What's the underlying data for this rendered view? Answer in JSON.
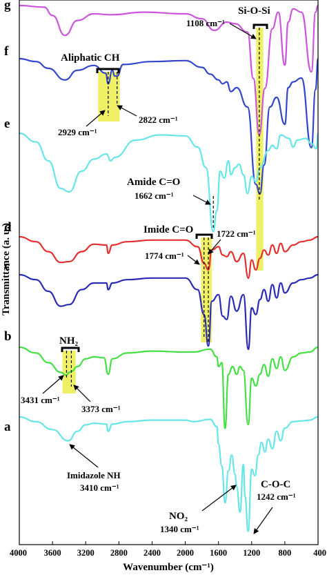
{
  "chart_data": {
    "type": "line",
    "xlabel": "Wavenumber (cm⁻¹)",
    "ylabel": "Transmittance (a. u.)",
    "xlim": [
      4000,
      400
    ],
    "x_reversed": true,
    "x_ticks": [
      4000,
      3600,
      3200,
      2800,
      2400,
      2000,
      1600,
      1200,
      800,
      400
    ],
    "x_tick_labels": [
      "4000",
      "3600",
      "3200",
      "2800",
      "2400",
      "2000",
      "1600",
      "1200",
      "800",
      "400"
    ],
    "grid": false,
    "legend": "none",
    "series": [
      {
        "letter": "g",
        "color": "#cc55dd",
        "points": [
          [
            4000,
            0.0
          ],
          [
            3700,
            0.05
          ],
          [
            3600,
            0.3
          ],
          [
            3450,
            0.9
          ],
          [
            3300,
            0.45
          ],
          [
            3100,
            0.25
          ],
          [
            2900,
            0.28
          ],
          [
            2500,
            0.2
          ],
          [
            2000,
            0.25
          ],
          [
            1800,
            0.4
          ],
          [
            1650,
            0.75
          ],
          [
            1500,
            0.5
          ],
          [
            1400,
            0.55
          ],
          [
            1250,
            0.8
          ],
          [
            1180,
            2.2
          ],
          [
            1108,
            3.9
          ],
          [
            1040,
            2.5
          ],
          [
            950,
            0.7
          ],
          [
            880,
            0.2
          ],
          [
            800,
            1.8
          ],
          [
            760,
            0.5
          ],
          [
            700,
            0.1
          ],
          [
            600,
            0.2
          ],
          [
            480,
            2.0
          ],
          [
            430,
            0.2
          ],
          [
            400,
            0.0
          ]
        ]
      },
      {
        "letter": "f",
        "color": "#3346cc",
        "points": [
          [
            4000,
            0.0
          ],
          [
            3800,
            0.15
          ],
          [
            3650,
            0.5
          ],
          [
            3450,
            1.1
          ],
          [
            3300,
            0.6
          ],
          [
            3100,
            0.35
          ],
          [
            2960,
            0.75
          ],
          [
            2929,
            1.3
          ],
          [
            2880,
            0.6
          ],
          [
            2850,
            0.9
          ],
          [
            2822,
            0.9
          ],
          [
            2750,
            0.3
          ],
          [
            2400,
            0.15
          ],
          [
            2000,
            0.1
          ],
          [
            1800,
            0.45
          ],
          [
            1700,
            0.8
          ],
          [
            1600,
            1.1
          ],
          [
            1550,
            1.3
          ],
          [
            1500,
            1.2
          ],
          [
            1450,
            1.7
          ],
          [
            1380,
            1.5
          ],
          [
            1250,
            2.5
          ],
          [
            1150,
            6.5
          ],
          [
            1100,
            7.0
          ],
          [
            1050,
            5.5
          ],
          [
            980,
            2.5
          ],
          [
            900,
            2.0
          ],
          [
            800,
            3.4
          ],
          [
            760,
            1.5
          ],
          [
            700,
            1.2
          ],
          [
            600,
            1.0
          ],
          [
            480,
            4.6
          ],
          [
            430,
            1.6
          ],
          [
            400,
            0.0
          ]
        ]
      },
      {
        "letter": "e",
        "color": "#66e6e6",
        "points": [
          [
            4000,
            0.0
          ],
          [
            3800,
            0.5
          ],
          [
            3650,
            1.6
          ],
          [
            3500,
            3.2
          ],
          [
            3400,
            3.4
          ],
          [
            3250,
            2.2
          ],
          [
            3100,
            1.5
          ],
          [
            2950,
            1.2
          ],
          [
            2900,
            1.6
          ],
          [
            2850,
            1.4
          ],
          [
            2600,
            0.4
          ],
          [
            2300,
            0.1
          ],
          [
            2000,
            0.15
          ],
          [
            1850,
            0.8
          ],
          [
            1750,
            2.0
          ],
          [
            1662,
            5.7
          ],
          [
            1620,
            4.5
          ],
          [
            1580,
            2.2
          ],
          [
            1530,
            2.6
          ],
          [
            1480,
            1.6
          ],
          [
            1450,
            2.4
          ],
          [
            1400,
            2.0
          ],
          [
            1350,
            1.8
          ],
          [
            1300,
            2.4
          ],
          [
            1250,
            3.5
          ],
          [
            1200,
            2.5
          ],
          [
            1150,
            2.8
          ],
          [
            1100,
            2.0
          ],
          [
            1000,
            1.0
          ],
          [
            950,
            0.7
          ],
          [
            900,
            0.9
          ],
          [
            850,
            0.1
          ],
          [
            750,
            0.3
          ],
          [
            700,
            0.8
          ],
          [
            650,
            0.4
          ],
          [
            550,
            0.3
          ],
          [
            480,
            0.6
          ],
          [
            420,
            0.9
          ],
          [
            400,
            0.0
          ]
        ]
      },
      {
        "letter": "d",
        "color": "#e33030",
        "points": [
          [
            4000,
            0.0
          ],
          [
            3800,
            0.3
          ],
          [
            3650,
            0.9
          ],
          [
            3500,
            1.55
          ],
          [
            3400,
            1.5
          ],
          [
            3250,
            0.9
          ],
          [
            3100,
            0.45
          ],
          [
            2950,
            0.5
          ],
          [
            2929,
            1.0
          ],
          [
            2880,
            0.5
          ],
          [
            2700,
            0.3
          ],
          [
            2400,
            0.2
          ],
          [
            2000,
            0.2
          ],
          [
            1850,
            0.6
          ],
          [
            1774,
            1.6
          ],
          [
            1722,
            2.0
          ],
          [
            1680,
            0.8
          ],
          [
            1600,
            0.6
          ],
          [
            1550,
            1.1
          ],
          [
            1500,
            1.2
          ],
          [
            1450,
            0.9
          ],
          [
            1380,
            1.5
          ],
          [
            1300,
            1.0
          ],
          [
            1240,
            2.5
          ],
          [
            1200,
            1.4
          ],
          [
            1150,
            2.0
          ],
          [
            1100,
            1.3
          ],
          [
            1050,
            0.8
          ],
          [
            1000,
            1.1
          ],
          [
            950,
            0.5
          ],
          [
            900,
            1.0
          ],
          [
            850,
            0.4
          ],
          [
            800,
            0.9
          ],
          [
            700,
            0.5
          ],
          [
            600,
            0.3
          ],
          [
            500,
            0.2
          ],
          [
            400,
            0.0
          ]
        ]
      },
      {
        "letter": "c",
        "color": "#2a2ab8",
        "points": [
          [
            4000,
            0.0
          ],
          [
            3800,
            0.3
          ],
          [
            3650,
            1.0
          ],
          [
            3500,
            1.9
          ],
          [
            3400,
            1.8
          ],
          [
            3250,
            0.9
          ],
          [
            3100,
            0.5
          ],
          [
            2950,
            0.5
          ],
          [
            2929,
            0.9
          ],
          [
            2880,
            0.5
          ],
          [
            2700,
            0.3
          ],
          [
            2400,
            0.2
          ],
          [
            2000,
            0.2
          ],
          [
            1850,
            0.9
          ],
          [
            1774,
            2.4
          ],
          [
            1722,
            4.3
          ],
          [
            1680,
            1.6
          ],
          [
            1600,
            1.2
          ],
          [
            1550,
            2.5
          ],
          [
            1500,
            2.7
          ],
          [
            1450,
            1.3
          ],
          [
            1380,
            2.2
          ],
          [
            1300,
            1.2
          ],
          [
            1240,
            4.5
          ],
          [
            1200,
            2.0
          ],
          [
            1150,
            2.4
          ],
          [
            1100,
            1.5
          ],
          [
            1050,
            0.9
          ],
          [
            1000,
            1.6
          ],
          [
            950,
            0.6
          ],
          [
            900,
            1.4
          ],
          [
            850,
            0.5
          ],
          [
            800,
            1.1
          ],
          [
            700,
            0.5
          ],
          [
            600,
            0.3
          ],
          [
            500,
            0.2
          ],
          [
            400,
            0.0
          ]
        ]
      },
      {
        "letter": "b",
        "color": "#44e044",
        "points": [
          [
            4000,
            0.0
          ],
          [
            3800,
            0.3
          ],
          [
            3650,
            0.8
          ],
          [
            3500,
            1.3
          ],
          [
            3431,
            1.45
          ],
          [
            3400,
            1.3
          ],
          [
            3373,
            1.25
          ],
          [
            3300,
            1.0
          ],
          [
            3200,
            0.6
          ],
          [
            3100,
            0.5
          ],
          [
            2980,
            0.55
          ],
          [
            2929,
            1.4
          ],
          [
            2880,
            0.6
          ],
          [
            2700,
            0.3
          ],
          [
            2400,
            0.2
          ],
          [
            2000,
            0.25
          ],
          [
            1900,
            0.25
          ],
          [
            1700,
            0.1
          ],
          [
            1620,
            0.5
          ],
          [
            1600,
            1.0
          ],
          [
            1560,
            0.8
          ],
          [
            1520,
            4.2
          ],
          [
            1480,
            1.4
          ],
          [
            1430,
            1.0
          ],
          [
            1380,
            1.4
          ],
          [
            1340,
            1.0
          ],
          [
            1300,
            1.2
          ],
          [
            1242,
            4.0
          ],
          [
            1200,
            1.6
          ],
          [
            1150,
            2.0
          ],
          [
            1100,
            1.4
          ],
          [
            1050,
            0.9
          ],
          [
            1000,
            1.5
          ],
          [
            950,
            0.6
          ],
          [
            900,
            1.1
          ],
          [
            850,
            0.5
          ],
          [
            800,
            1.2
          ],
          [
            700,
            0.5
          ],
          [
            600,
            0.3
          ],
          [
            500,
            0.25
          ],
          [
            400,
            0.0
          ]
        ]
      },
      {
        "letter": "a",
        "color": "#66e6e6",
        "points": [
          [
            4000,
            0.0
          ],
          [
            3800,
            0.3
          ],
          [
            3600,
            0.8
          ],
          [
            3410,
            1.5
          ],
          [
            3300,
            0.9
          ],
          [
            3200,
            0.5
          ],
          [
            3100,
            0.4
          ],
          [
            2950,
            0.45
          ],
          [
            2929,
            0.9
          ],
          [
            2880,
            0.45
          ],
          [
            2700,
            0.3
          ],
          [
            2400,
            0.2
          ],
          [
            2000,
            0.2
          ],
          [
            1900,
            0.3
          ],
          [
            1700,
            0.15
          ],
          [
            1620,
            0.6
          ],
          [
            1600,
            1.7
          ],
          [
            1560,
            3.1
          ],
          [
            1520,
            5.4
          ],
          [
            1480,
            3.4
          ],
          [
            1440,
            2.4
          ],
          [
            1400,
            3.6
          ],
          [
            1380,
            4.4
          ],
          [
            1340,
            6.0
          ],
          [
            1300,
            3.0
          ],
          [
            1280,
            5.0
          ],
          [
            1242,
            7.2
          ],
          [
            1200,
            3.3
          ],
          [
            1160,
            3.7
          ],
          [
            1120,
            2.4
          ],
          [
            1080,
            1.6
          ],
          [
            1040,
            2.2
          ],
          [
            1000,
            1.4
          ],
          [
            950,
            2.0
          ],
          [
            900,
            0.9
          ],
          [
            850,
            1.5
          ],
          [
            800,
            0.7
          ],
          [
            700,
            0.3
          ],
          [
            600,
            0.25
          ],
          [
            500,
            0.2
          ],
          [
            400,
            0.0
          ]
        ]
      }
    ],
    "annotations": {
      "aliphatic_ch": "Aliphatic CH",
      "p2929": "2929 cm⁻¹",
      "p2822": "2822 cm⁻¹",
      "si_o_si": "Si-O-Si",
      "p1108": "1108 cm⁻¹",
      "amide_co": "Amide C=O",
      "p1662": "1662 cm⁻¹",
      "imide_co": "Imide C=O",
      "p1722": "1722 cm⁻¹",
      "p1774": "1774 cm⁻¹",
      "nh2": "NH₂",
      "p3431": "3431 cm⁻¹",
      "p3373": "3373 cm⁻¹",
      "imidazole_nh": "Imidazole NH",
      "p3410": "3410 cm⁻¹",
      "no2": "NO₂",
      "p1340": "1340 cm⁻¹",
      "coc": "C-O-C",
      "p1242": "1242 cm⁻¹"
    },
    "highlight_color": "#f0f066"
  }
}
